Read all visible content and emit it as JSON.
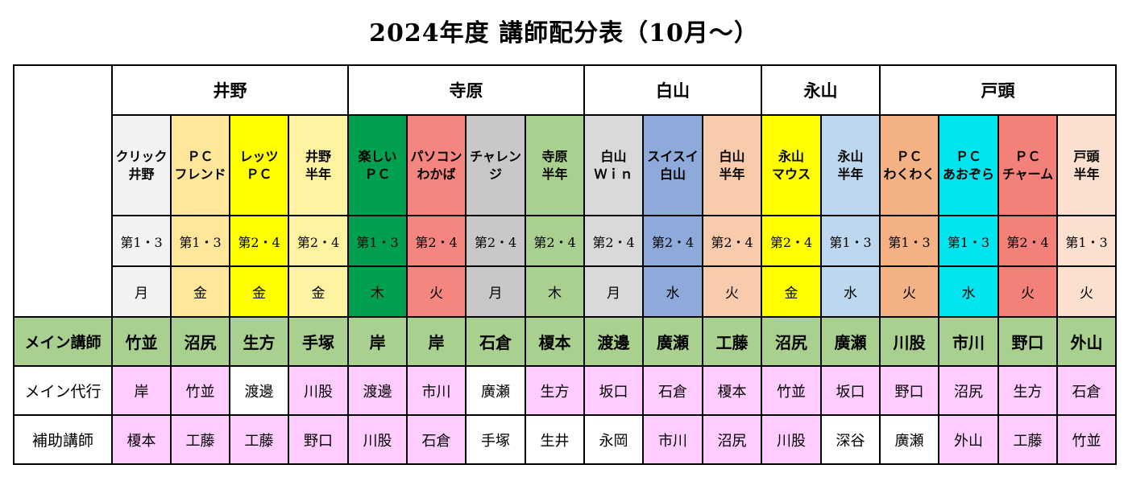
{
  "title": "2024年度 講師配分表（10月～）",
  "groups": [
    "井野",
    "寺原",
    "白山",
    "永山",
    "戸頭"
  ],
  "classes": [
    {
      "name": "クリック\n井野",
      "week": "第1・3",
      "day": "月",
      "color": "#f2f2f2"
    },
    {
      "name": "ＰＣ\nフレンド",
      "week": "第1・3",
      "day": "金",
      "color": "#ffe699"
    },
    {
      "name": "レッツ\nＰＣ",
      "week": "第2・4",
      "day": "金",
      "color": "#ffff00"
    },
    {
      "name": "井野\n半年",
      "week": "第2・4",
      "day": "金",
      "color": "#fff2a0"
    },
    {
      "name": "楽しい\nＰＣ",
      "week": "第1・3",
      "day": "木",
      "color": "#00a050"
    },
    {
      "name": "パソコン\nわかば",
      "week": "第2・4",
      "day": "火",
      "color": "#f4857f"
    },
    {
      "name": "チャレン\nジ",
      "week": "第2・4",
      "day": "月",
      "color": "#c8c8c8"
    },
    {
      "name": "寺原\n半年",
      "week": "第2・4",
      "day": "木",
      "color": "#a9d08e"
    },
    {
      "name": "白山\nＷｉｎ",
      "week": "第2・4",
      "day": "月",
      "color": "#d9d9d9"
    },
    {
      "name": "スイスイ\n白山",
      "week": "第2・4",
      "day": "水",
      "color": "#8eaadb"
    },
    {
      "name": "白山\n半年",
      "week": "第2・4",
      "day": "火",
      "color": "#f8cbad"
    },
    {
      "name": "永山\nマウス",
      "week": "第2・4",
      "day": "金",
      "color": "#ffff00"
    },
    {
      "name": "永山\n半年",
      "week": "第1・3",
      "day": "水",
      "color": "#bdd7ee"
    },
    {
      "name": "ＰＣ\nわくわく",
      "week": "第1・3",
      "day": "火",
      "color": "#f4b183"
    },
    {
      "name": "ＰＣ\nあおぞら",
      "week": "第1・3",
      "day": "水",
      "color": "#00e5ee"
    },
    {
      "name": "ＰＣ\nチャーム",
      "week": "第2・4",
      "day": "火",
      "color": "#f4807a"
    },
    {
      "name": "戸頭\n半年",
      "week": "第1・3",
      "day": "火",
      "color": "#fbe0d0"
    }
  ],
  "rows": {
    "main": {
      "label": "メイン講師",
      "names": [
        "竹並",
        "沼尻",
        "生方",
        "手塚",
        "岸",
        "岸",
        "石倉",
        "榎本",
        "渡邊",
        "廣瀬",
        "工藤",
        "沼尻",
        "廣瀬",
        "川股",
        "市川",
        "野口",
        "外山"
      ]
    },
    "sub": {
      "label": "メイン代行",
      "names": [
        "岸",
        "竹並",
        "渡邊",
        "川股",
        "渡邊",
        "市川",
        "廣瀬",
        "生方",
        "坂口",
        "石倉",
        "榎本",
        "竹並",
        "坂口",
        "野口",
        "沼尻",
        "生方",
        "石倉"
      ],
      "colors": [
        "#ffccff",
        "#ffccff",
        "#ffffff",
        "#ffccff",
        "#ffccff",
        "#ffccff",
        "#ffffff",
        "#ffccff",
        "#ffccff",
        "#ffccff",
        "#ffccff",
        "#ffccff",
        "#ffccff",
        "#ffccff",
        "#ffccff",
        "#ffccff",
        "#ffccff"
      ]
    },
    "assistant": {
      "label": "補助講師",
      "names": [
        "榎本",
        "工藤",
        "工藤",
        "野口",
        "川股",
        "石倉",
        "手塚",
        "生井",
        "永岡",
        "市川",
        "沼尻",
        "川股",
        "深谷",
        "廣瀬",
        "外山",
        "工藤",
        "竹並"
      ],
      "colors": [
        "#ffccff",
        "#ffccff",
        "#ffccff",
        "#ffccff",
        "#ffccff",
        "#ffccff",
        "#ffffff",
        "#ffffff",
        "#ffffff",
        "#ffccff",
        "#ffccff",
        "#ffccff",
        "#ffffff",
        "#ffffff",
        "#ffccff",
        "#ffccff",
        "#ffccff"
      ]
    }
  },
  "colors": {
    "main_row": "#a9d08e",
    "grid_line": "#000000"
  }
}
